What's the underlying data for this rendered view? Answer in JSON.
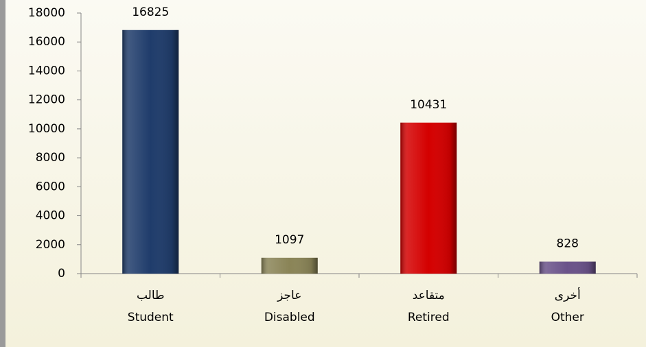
{
  "chart_data": {
    "type": "bar",
    "categories": [
      [
        "طالب",
        "Student"
      ],
      [
        "عاجز",
        "Disabled"
      ],
      [
        "متقاعد",
        "Retired"
      ],
      [
        "أخرى",
        "Other"
      ]
    ],
    "values": [
      16825,
      1097,
      10431,
      828
    ],
    "colors": [
      "#1f3c6b",
      "#8a8457",
      "#d40000",
      "#6a5289"
    ],
    "ylim": [
      0,
      18000
    ],
    "yticks": [
      0,
      2000,
      4000,
      6000,
      8000,
      10000,
      12000,
      14000,
      16000,
      18000
    ],
    "grid": false
  }
}
